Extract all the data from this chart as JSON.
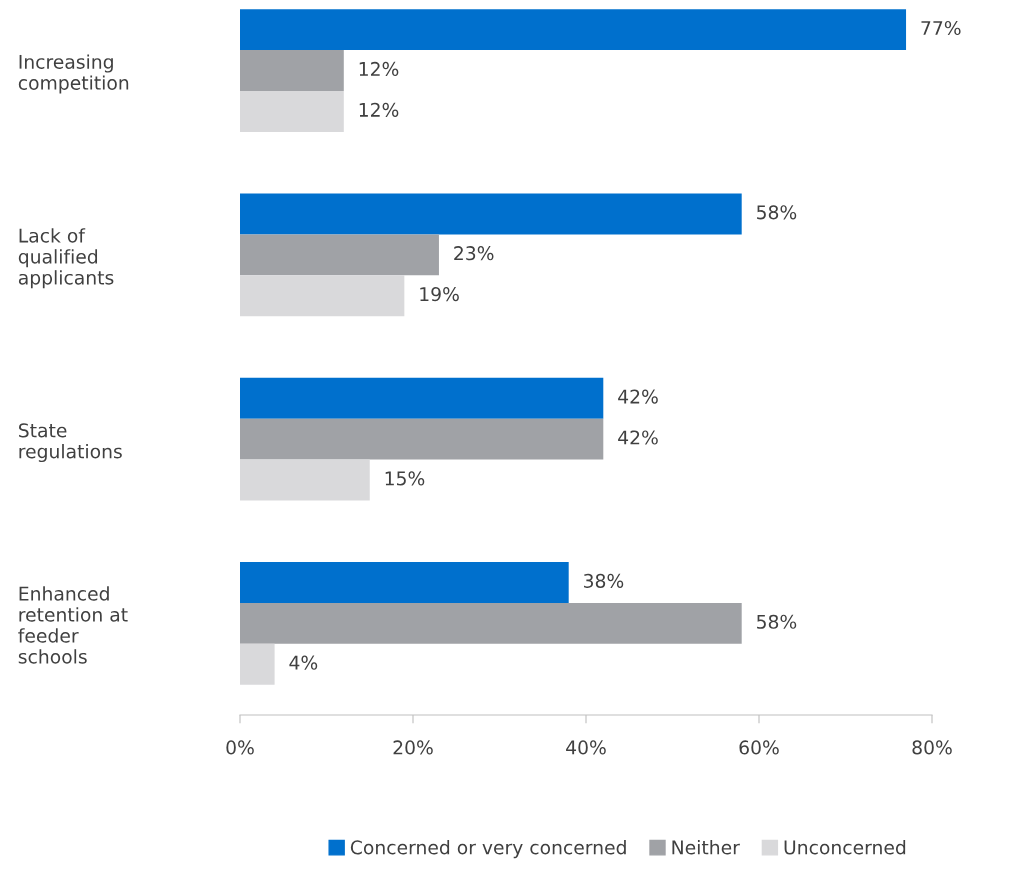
{
  "chart_data": {
    "type": "bar",
    "orientation": "horizontal",
    "categories": [
      "Increasing\ncompetition",
      "Lack of\nqualified\napplicants",
      "State\nregulations",
      "Enhanced\nretention at\nfeeder\nschools"
    ],
    "series": [
      {
        "name": "Concerned or very concerned",
        "color": "#0070cd",
        "values": [
          77,
          58,
          42,
          38
        ],
        "value_labels": [
          "77%",
          "58%",
          "42%",
          "38%"
        ]
      },
      {
        "name": "Neither",
        "color": "#a0a2a6",
        "values": [
          12,
          23,
          42,
          58
        ],
        "value_labels": [
          "12%",
          "23%",
          "42%",
          "58%"
        ]
      },
      {
        "name": "Unconcerned",
        "color": "#d9d9db",
        "values": [
          12,
          19,
          15,
          4
        ],
        "value_labels": [
          "12%",
          "19%",
          "15%",
          "4%"
        ]
      }
    ],
    "xlim": [
      0,
      80
    ],
    "xticks": [
      {
        "value": 0,
        "label": "0%"
      },
      {
        "value": 20,
        "label": "20%"
      },
      {
        "value": 40,
        "label": "40%"
      },
      {
        "value": 60,
        "label": "60%"
      },
      {
        "value": 80,
        "label": "80%"
      }
    ],
    "grid": false,
    "legend": "bottom"
  }
}
